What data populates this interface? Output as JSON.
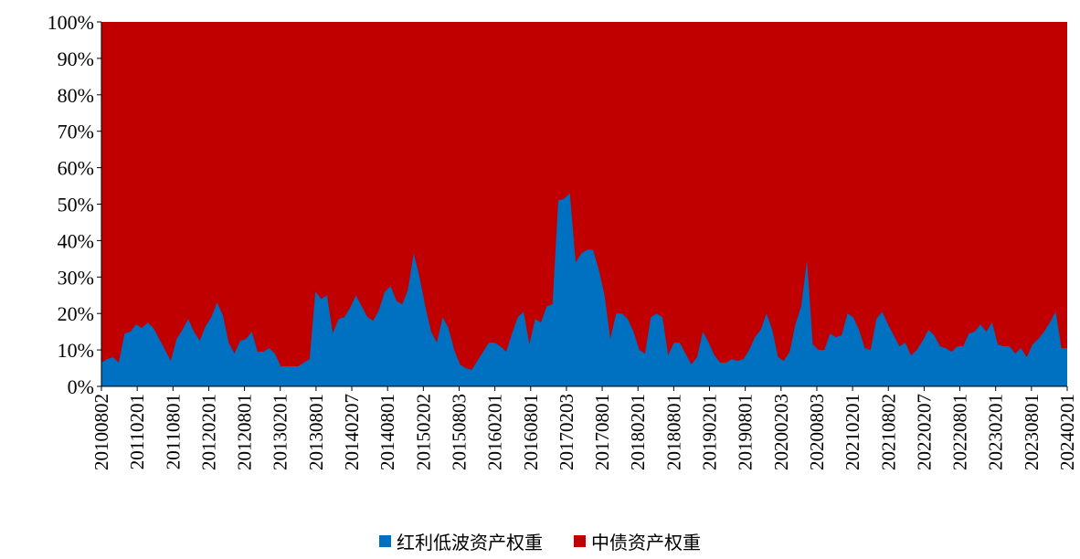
{
  "colors": {
    "dividend_lowvol": "#0070C0",
    "china_bond": "#C00000"
  },
  "chart_data": {
    "type": "area",
    "stacked_percent": true,
    "ylim": [
      0,
      100
    ],
    "y_ticks": [
      "0%",
      "10%",
      "20%",
      "30%",
      "40%",
      "50%",
      "60%",
      "70%",
      "80%",
      "90%",
      "100%"
    ],
    "x_tick_labels": [
      "20100802",
      "20110201",
      "20110801",
      "20120201",
      "20120801",
      "20130201",
      "20130801",
      "20140207",
      "20140801",
      "20150202",
      "20150803",
      "20160201",
      "20160801",
      "20170203",
      "20170801",
      "20180201",
      "20180801",
      "20190201",
      "20190801",
      "20200203",
      "20200803",
      "20210201",
      "20210802",
      "20220207",
      "20220801",
      "20230201",
      "20230801",
      "20240201"
    ],
    "legend": {
      "position": "bottom"
    },
    "series": [
      {
        "name": "红利低波资产权重",
        "color": "#0070C0",
        "points": [
          [
            "2010-08",
            6.5
          ],
          [
            "2010-09",
            7.5
          ],
          [
            "2010-10",
            8
          ],
          [
            "2010-11",
            6.5
          ],
          [
            "2010-12",
            14.5
          ],
          [
            "2011-01",
            15
          ],
          [
            "2011-02",
            17
          ],
          [
            "2011-03",
            16
          ],
          [
            "2011-04",
            17.5
          ],
          [
            "2011-05",
            16
          ],
          [
            "2011-06",
            13
          ],
          [
            "2011-07",
            10
          ],
          [
            "2011-08",
            7
          ],
          [
            "2011-09",
            13
          ],
          [
            "2011-10",
            15.5
          ],
          [
            "2011-11",
            18.5
          ],
          [
            "2011-12",
            15
          ],
          [
            "2012-01",
            12.5
          ],
          [
            "2012-02",
            16.5
          ],
          [
            "2012-03",
            19
          ],
          [
            "2012-04",
            23
          ],
          [
            "2012-05",
            19.5
          ],
          [
            "2012-06",
            12
          ],
          [
            "2012-07",
            9
          ],
          [
            "2012-08",
            12.5
          ],
          [
            "2012-09",
            13
          ],
          [
            "2012-10",
            15
          ],
          [
            "2012-11",
            9.5
          ],
          [
            "2012-12",
            9.5
          ],
          [
            "2013-01",
            10.5
          ],
          [
            "2013-02",
            9
          ],
          [
            "2013-03",
            5.5
          ],
          [
            "2013-04",
            5.5
          ],
          [
            "2013-05",
            5.5
          ],
          [
            "2013-06",
            5.5
          ],
          [
            "2013-07",
            6.5
          ],
          [
            "2013-08",
            7.5
          ],
          [
            "2013-09",
            26
          ],
          [
            "2013-10",
            24
          ],
          [
            "2013-11",
            25
          ],
          [
            "2013-12",
            14.5
          ],
          [
            "2014-01",
            18.5
          ],
          [
            "2014-02",
            19
          ],
          [
            "2014-03",
            21.5
          ],
          [
            "2014-04",
            25
          ],
          [
            "2014-05",
            22
          ],
          [
            "2014-06",
            19
          ],
          [
            "2014-07",
            18
          ],
          [
            "2014-08",
            21
          ],
          [
            "2014-09",
            26
          ],
          [
            "2014-10",
            27.5
          ],
          [
            "2014-11",
            23.5
          ],
          [
            "2014-12",
            22.5
          ],
          [
            "2015-01",
            26.5
          ],
          [
            "2015-02",
            36.5
          ],
          [
            "2015-03",
            30
          ],
          [
            "2015-04",
            22
          ],
          [
            "2015-05",
            15
          ],
          [
            "2015-06",
            12
          ],
          [
            "2015-07",
            19
          ],
          [
            "2015-08",
            16
          ],
          [
            "2015-09",
            10
          ],
          [
            "2015-10",
            6
          ],
          [
            "2015-11",
            5
          ],
          [
            "2015-12",
            4.5
          ],
          [
            "2016-01",
            7
          ],
          [
            "2016-02",
            9.5
          ],
          [
            "2016-03",
            12
          ],
          [
            "2016-04",
            12
          ],
          [
            "2016-05",
            11
          ],
          [
            "2016-06",
            9.5
          ],
          [
            "2016-07",
            14.5
          ],
          [
            "2016-08",
            19
          ],
          [
            "2016-09",
            20.5
          ],
          [
            "2016-10",
            11.5
          ],
          [
            "2016-11",
            18.5
          ],
          [
            "2016-12",
            17.5
          ],
          [
            "2017-01",
            22
          ],
          [
            "2017-02",
            22.5
          ],
          [
            "2017-03",
            51
          ],
          [
            "2017-04",
            51.5
          ],
          [
            "2017-05",
            53
          ],
          [
            "2017-06",
            34
          ],
          [
            "2017-07",
            36.5
          ],
          [
            "2017-08",
            37.5
          ],
          [
            "2017-09",
            37.5
          ],
          [
            "2017-10",
            32
          ],
          [
            "2017-11",
            25
          ],
          [
            "2017-12",
            13
          ],
          [
            "2018-01",
            20
          ],
          [
            "2018-02",
            20
          ],
          [
            "2018-03",
            18.5
          ],
          [
            "2018-04",
            15
          ],
          [
            "2018-05",
            10
          ],
          [
            "2018-06",
            9
          ],
          [
            "2018-07",
            19
          ],
          [
            "2018-08",
            20
          ],
          [
            "2018-09",
            19
          ],
          [
            "2018-10",
            8.5
          ],
          [
            "2018-11",
            12
          ],
          [
            "2018-12",
            12
          ],
          [
            "2019-01",
            9
          ],
          [
            "2019-02",
            6
          ],
          [
            "2019-03",
            8
          ],
          [
            "2019-04",
            15
          ],
          [
            "2019-05",
            12
          ],
          [
            "2019-06",
            8.5
          ],
          [
            "2019-07",
            6.5
          ],
          [
            "2019-08",
            6.5
          ],
          [
            "2019-09",
            7.5
          ],
          [
            "2019-10",
            7
          ],
          [
            "2019-11",
            7.5
          ],
          [
            "2019-12",
            10
          ],
          [
            "2020-01",
            13.5
          ],
          [
            "2020-02",
            15.5
          ],
          [
            "2020-03",
            20
          ],
          [
            "2020-04",
            15.5
          ],
          [
            "2020-05",
            8
          ],
          [
            "2020-06",
            7
          ],
          [
            "2020-07",
            9.5
          ],
          [
            "2020-08",
            17
          ],
          [
            "2020-09",
            22
          ],
          [
            "2020-10",
            34.5
          ],
          [
            "2020-11",
            11.5
          ],
          [
            "2020-12",
            10
          ],
          [
            "2021-01",
            10
          ],
          [
            "2021-02",
            14.5
          ],
          [
            "2021-03",
            13.5
          ],
          [
            "2021-04",
            14
          ],
          [
            "2021-05",
            20
          ],
          [
            "2021-06",
            19
          ],
          [
            "2021-07",
            15.5
          ],
          [
            "2021-08",
            10.5
          ],
          [
            "2021-09",
            10
          ],
          [
            "2021-10",
            18.5
          ],
          [
            "2021-11",
            20.5
          ],
          [
            "2021-12",
            17
          ],
          [
            "2022-01",
            14
          ],
          [
            "2022-02",
            11
          ],
          [
            "2022-03",
            12
          ],
          [
            "2022-04",
            8.5
          ],
          [
            "2022-05",
            10
          ],
          [
            "2022-06",
            12.5
          ],
          [
            "2022-07",
            15.5
          ],
          [
            "2022-08",
            14
          ],
          [
            "2022-09",
            11
          ],
          [
            "2022-10",
            10.5
          ],
          [
            "2022-11",
            9.5
          ],
          [
            "2022-12",
            11
          ],
          [
            "2023-01",
            11
          ],
          [
            "2023-02",
            14.5
          ],
          [
            "2023-03",
            15
          ],
          [
            "2023-04",
            17
          ],
          [
            "2023-05",
            15
          ],
          [
            "2023-06",
            17.5
          ],
          [
            "2023-07",
            11.5
          ],
          [
            "2023-08",
            11
          ],
          [
            "2023-09",
            11
          ],
          [
            "2023-10",
            9
          ],
          [
            "2023-11",
            10.5
          ],
          [
            "2023-12",
            8
          ],
          [
            "2024-01",
            11.5
          ],
          [
            "2024-02",
            13
          ],
          [
            "2024-03",
            15
          ],
          [
            "2024-04",
            17.5
          ],
          [
            "2024-05",
            20.5
          ],
          [
            "2024-06",
            10.5
          ],
          [
            "2024-07",
            10.5
          ]
        ]
      },
      {
        "name": "中债资产权重",
        "color": "#C00000",
        "complement_of": "红利低波资产权重"
      }
    ]
  }
}
